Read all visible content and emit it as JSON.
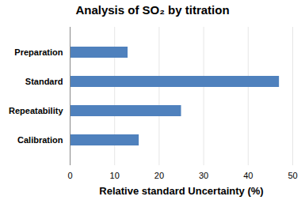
{
  "chart_data": {
    "type": "bar",
    "orientation": "horizontal",
    "title": "Analysis of SO₂ by titration",
    "xlabel": "Relative standard Uncertainty (%)",
    "categories": [
      "Preparation",
      "Standard",
      "Repeatability",
      "Calibration"
    ],
    "values": [
      13,
      47,
      25,
      15.5
    ],
    "color": "#4f81bd",
    "xlim": [
      0,
      50
    ],
    "xticks": [
      0,
      10,
      20,
      30,
      40,
      50
    ],
    "grid": true
  }
}
